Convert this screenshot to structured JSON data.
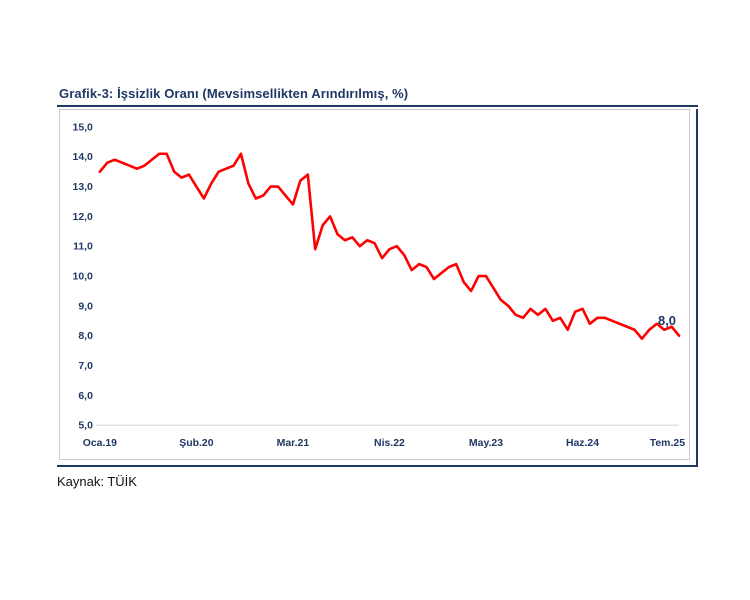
{
  "header": {
    "title": "Grafik-3: İşsizlik Oranı (Mevsimsellikten Arındırılmış, %)"
  },
  "source": {
    "label": "Kaynak: TÜİK"
  },
  "colors": {
    "accent_navy": "#1f3864",
    "line_red": "#ff0000",
    "frame_gray": "#c6cbd4",
    "baseline_gray": "#d9d9d9",
    "background": "#ffffff"
  },
  "chart_data": {
    "type": "line",
    "title": "Grafik-3: İşsizlik Oranı (Mevsimsellikten Arındırılmış, %)",
    "xlabel": "",
    "ylabel": "",
    "ylim": [
      5,
      15
    ],
    "grid": false,
    "legend": false,
    "x_unit": "month",
    "x_tick_positions": [
      0,
      13,
      26,
      39,
      52,
      65,
      78
    ],
    "x_tick_labels": [
      "Oca.19",
      "Şub.20",
      "Mar.21",
      "Nis.22",
      "May.23",
      "Haz.24",
      "Tem.25"
    ],
    "y_tick_values": [
      15,
      14,
      13,
      12,
      11,
      10,
      9,
      8,
      7,
      6,
      5
    ],
    "y_tick_labels": [
      "15,0",
      "14,0",
      "13,0",
      "12,0",
      "11,0",
      "10,0",
      "9,0",
      "8,0",
      "7,0",
      "6,0",
      "5,0"
    ],
    "last_point_label": "8,0",
    "series": [
      {
        "name": "İşsizlik Oranı (Mevsimsellikten Arındırılmış, %)",
        "values": [
          13.5,
          13.8,
          13.9,
          13.8,
          13.7,
          13.6,
          13.7,
          13.9,
          14.1,
          14.1,
          13.5,
          13.3,
          13.4,
          13.0,
          12.6,
          13.1,
          13.5,
          13.6,
          13.7,
          14.1,
          13.1,
          12.6,
          12.7,
          13.0,
          13.0,
          12.7,
          12.4,
          13.2,
          13.4,
          10.9,
          11.7,
          12.0,
          11.4,
          11.2,
          11.3,
          11.0,
          11.2,
          11.1,
          10.6,
          10.9,
          11.0,
          10.7,
          10.2,
          10.4,
          10.3,
          9.9,
          10.1,
          10.3,
          10.4,
          9.8,
          9.5,
          10.0,
          10.0,
          9.6,
          9.2,
          9.0,
          8.7,
          8.6,
          8.9,
          8.7,
          8.9,
          8.5,
          8.6,
          8.2,
          8.8,
          8.9,
          8.4,
          8.6,
          8.6,
          8.5,
          8.4,
          8.3,
          8.2,
          7.9,
          8.2,
          8.4,
          8.2,
          8.3,
          8.0
        ]
      }
    ]
  }
}
